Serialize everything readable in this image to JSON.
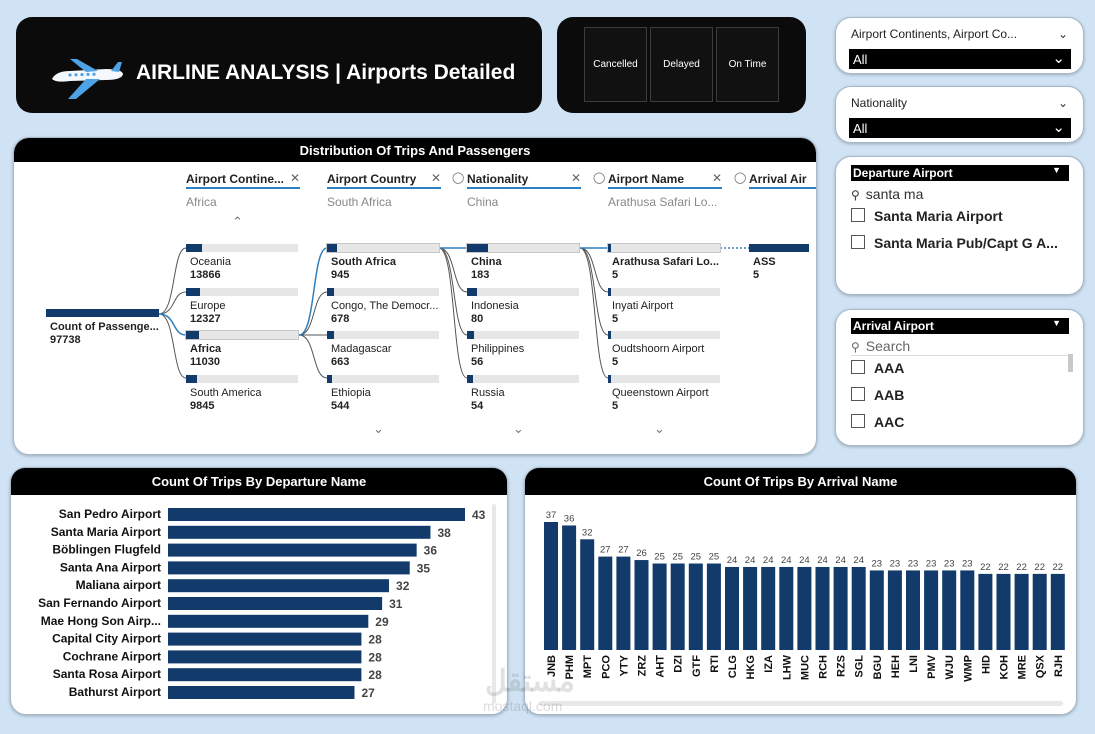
{
  "header": {
    "title": "AIRLINE ANALYSIS | Airports Detailed",
    "icon": "airplane-icon"
  },
  "status_buttons": [
    "Cancelled",
    "Delayed",
    "On Time"
  ],
  "slicer_continents": {
    "title": "Airport Continents, Airport Co...",
    "value": "All"
  },
  "slicer_nationality": {
    "title": "Nationality",
    "value": "All"
  },
  "departure_slicer": {
    "title": "Departure Airport",
    "search": "santa ma",
    "items": [
      "Santa Maria Airport",
      "Santa Maria Pub/Capt G A..."
    ]
  },
  "arrival_slicer": {
    "title": "Arrival Airport",
    "search_placeholder": "Search",
    "items": [
      "AAA",
      "AAB",
      "AAC"
    ]
  },
  "decomposition": {
    "title": "Distribution Of Trips And Passengers",
    "root": {
      "label": "Count of Passenge...",
      "value": "97738"
    },
    "levels": [
      {
        "name": "Airport Contine...",
        "selected": "Africa"
      },
      {
        "name": "Airport Country",
        "selected": "South Africa"
      },
      {
        "name": "Nationality",
        "selected": "China"
      },
      {
        "name": "Airport Name",
        "selected": "Arathusa Safari Lo..."
      },
      {
        "name": "Arrival Air"
      }
    ],
    "columns": [
      {
        "nodes": [
          {
            "label": "Oceania",
            "value": "13866",
            "pct": 0.142
          },
          {
            "label": "Europe",
            "value": "12327",
            "pct": 0.126
          },
          {
            "label": "Africa",
            "value": "11030",
            "pct": 0.113,
            "selected": true
          },
          {
            "label": "South America",
            "value": "9845",
            "pct": 0.101
          }
        ]
      },
      {
        "nodes": [
          {
            "label": "South Africa",
            "value": "945",
            "pct": 0.086,
            "selected": true
          },
          {
            "label": "Congo, The Democr...",
            "value": "678",
            "pct": 0.061
          },
          {
            "label": "Madagascar",
            "value": "663",
            "pct": 0.06
          },
          {
            "label": "Ethiopia",
            "value": "544",
            "pct": 0.049
          }
        ]
      },
      {
        "nodes": [
          {
            "label": "China",
            "value": "183",
            "pct": 0.19,
            "selected": true
          },
          {
            "label": "Indonesia",
            "value": "80",
            "pct": 0.085
          },
          {
            "label": "Philippines",
            "value": "56",
            "pct": 0.06
          },
          {
            "label": "Russia",
            "value": "54",
            "pct": 0.057
          }
        ]
      },
      {
        "nodes": [
          {
            "label": "Arathusa Safari Lo...",
            "value": "5",
            "pct": 0.027,
            "selected": true
          },
          {
            "label": "Inyati Airport",
            "value": "5",
            "pct": 0.027
          },
          {
            "label": "Oudtshoorn Airport",
            "value": "5",
            "pct": 0.027
          },
          {
            "label": "Queenstown Airport",
            "value": "5",
            "pct": 0.027
          }
        ]
      },
      {
        "nodes": [
          {
            "label": "ASS",
            "value": "5",
            "pct": 1.0,
            "selected": true
          }
        ]
      }
    ]
  },
  "chart_data": [
    {
      "type": "bar",
      "orientation": "horizontal",
      "title": "Count Of Trips By Departure Name",
      "categories": [
        "San Pedro Airport",
        "Santa Maria Airport",
        "Böblingen Flugfeld",
        "Santa Ana Airport",
        "Maliana airport",
        "San Fernando Airport",
        "Mae Hong Son Airp...",
        "Capital City Airport",
        "Cochrane Airport",
        "Santa Rosa Airport",
        "Bathurst Airport"
      ],
      "values": [
        43,
        38,
        36,
        35,
        32,
        31,
        29,
        28,
        28,
        28,
        27
      ],
      "color": "#123b6b"
    },
    {
      "type": "bar",
      "orientation": "vertical",
      "title": "Count Of Trips By Arrival Name",
      "categories": [
        "JNB",
        "PHM",
        "MPT",
        "PCO",
        "YTY",
        "ZRZ",
        "AHT",
        "DZI",
        "GTF",
        "RTI",
        "CLG",
        "HKG",
        "IZA",
        "LHW",
        "MUC",
        "RCH",
        "RZS",
        "SGL",
        "BGU",
        "HEH",
        "LNI",
        "PMV",
        "WJU",
        "WMP",
        "HID",
        "KOH",
        "MRE",
        "QSX",
        "RJH"
      ],
      "values": [
        37,
        36,
        32,
        27,
        27,
        26,
        25,
        25,
        25,
        25,
        24,
        24,
        24,
        24,
        24,
        24,
        24,
        24,
        23,
        23,
        23,
        23,
        23,
        23,
        22,
        22,
        22,
        22,
        22
      ],
      "color": "#123b6b"
    }
  ],
  "watermark": {
    "arabic": "مستقل",
    "latin": "mostaql.com"
  }
}
